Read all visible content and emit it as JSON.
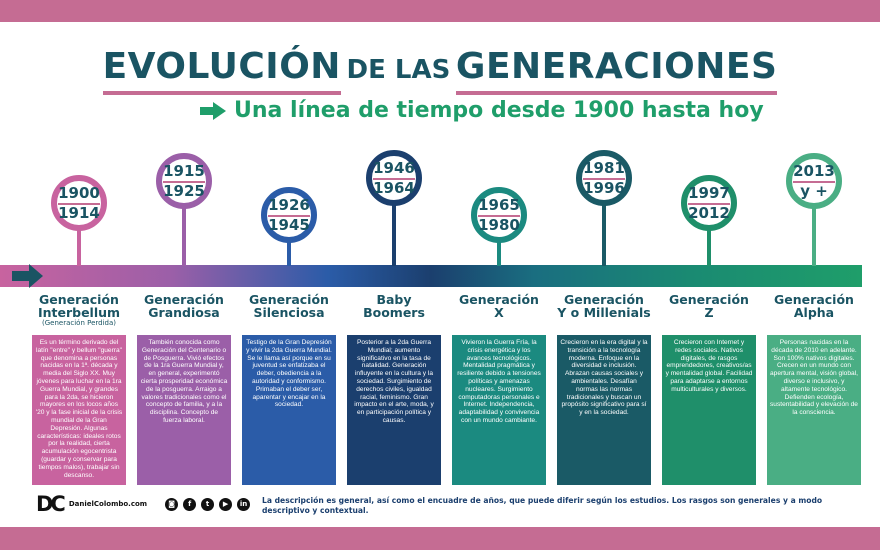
{
  "title": {
    "part1": "EVOLUCIÓN",
    "part2": "DE LAS",
    "part3": "GENERACIONES"
  },
  "subtitle": "Una línea de tiempo desde 1900 hasta hoy",
  "colors": {
    "band": "#c56c93",
    "title": "#1a5463",
    "accent": "#1f9e6a"
  },
  "generations": [
    {
      "start": "1900",
      "end": "1914",
      "name1": "Generación",
      "name2": "Interbellum",
      "note": "(Generación Perdida)",
      "color": "#c8639f",
      "text": "Es un término derivado del latín \"entre\" y bellum \"guerra\" que denomina a personas nacidas en la 1ª. década y media del Siglo XX. Muy jóvenes para luchar en la 1ra Guerra Mundial, y grandes para la 2da, se hicieron mayores en los locos años '20 y la fase inicial de la crisis mundial de la Gran Depresión. Algunas características: ideales rotos por la realidad, cierta acumulación egocentrista (guardar y conservar para tiempos malos), trabajar sin descanso."
    },
    {
      "start": "1915",
      "end": "1925",
      "name1": "Generación",
      "name2": "Grandiosa",
      "color": "#9b5fa8",
      "text": "También conocida como Generación del Centenario o de Posguerra. Vivió efectos de la 1ra Guerra Mundial y, en general, experimentó cierta prosperidad económica de la posguerra. Arraigo a valores tradicionales como el concepto de familia, y a la disciplina. Concepto de fuerza laboral."
    },
    {
      "start": "1926",
      "end": "1945",
      "name1": "Generación",
      "name2": "Silenciosa",
      "color": "#2b5ca8",
      "text": "Testigo de la Gran Depresión y vivir la 2da Guerra Mundial. Se le llama así porque en su juventud se enfatizaba el deber, obediencia a la autoridad y conformismo. Primaban el deber ser, aparentar y encajar en la sociedad."
    },
    {
      "start": "1946",
      "end": "1964",
      "name1": "Baby",
      "name2": "Boomers",
      "color": "#1b3f6e",
      "text": "Posterior a la 2da Guerra Mundial; aumento significativo en la tasa de natalidad. Generación influyente en la cultura y la sociedad. Surgimiento de derechos civiles, igualdad racial, feminismo. Gran impacto en el arte, moda, y en participación política y causas."
    },
    {
      "start": "1965",
      "end": "1980",
      "name1": "Generación",
      "name2": "X",
      "color": "#1b8a80",
      "text": "Vivieron la Guerra Fría, la crisis energética y los avances tecnológicos. Mentalidad pragmática y resiliente debido a tensiones políticas y amenazas nucleares. Surgimiento computadoras personales e Internet. Independencia, adaptabilidad y convivencia con un mundo cambiante."
    },
    {
      "start": "1981",
      "end": "1996",
      "name1": "Generación",
      "name2": "Y o Millenials",
      "color": "#1a5a66",
      "text": "Crecieron en la era digital y la transición a la tecnología moderna. Enfoque en la diversidad e inclusión. Abrazan causas sociales y ambientales. Desafían normas las normas tradicionales y buscan un propósito significativo para sí y en la sociedad."
    },
    {
      "start": "1997",
      "end": "2012",
      "name1": "Generación",
      "name2": "Z",
      "color": "#1f8f6a",
      "text": "Crecieron con Internet y redes sociales. Nativos digitales, de rasgos emprendedores, creativos/as y mentalidad global. Facilidad para adaptarse a entornos multiculturales y diversos."
    },
    {
      "start": "2013",
      "end": "y +",
      "name1": "Generación",
      "name2": "Alpha",
      "color": "#4aae84",
      "text": "Personas nacidas en la década de 2010 en adelante. Son 100% nativos digitales. Crecen en un mundo con apertura mental, visión global, diverso e inclusivo, y altamente tecnológico. Defienden ecología, sustentabilidad y elevación de la consciencia."
    }
  ],
  "footer": {
    "logo": "DC",
    "site": "DanielColombo.com",
    "social": [
      "instagram",
      "facebook",
      "twitter",
      "youtube",
      "linkedin"
    ],
    "note": "La descripción es general, así como el encuadre de años, que puede diferir según los estudios. Los rasgos son generales y a modo descriptivo y contextual."
  }
}
